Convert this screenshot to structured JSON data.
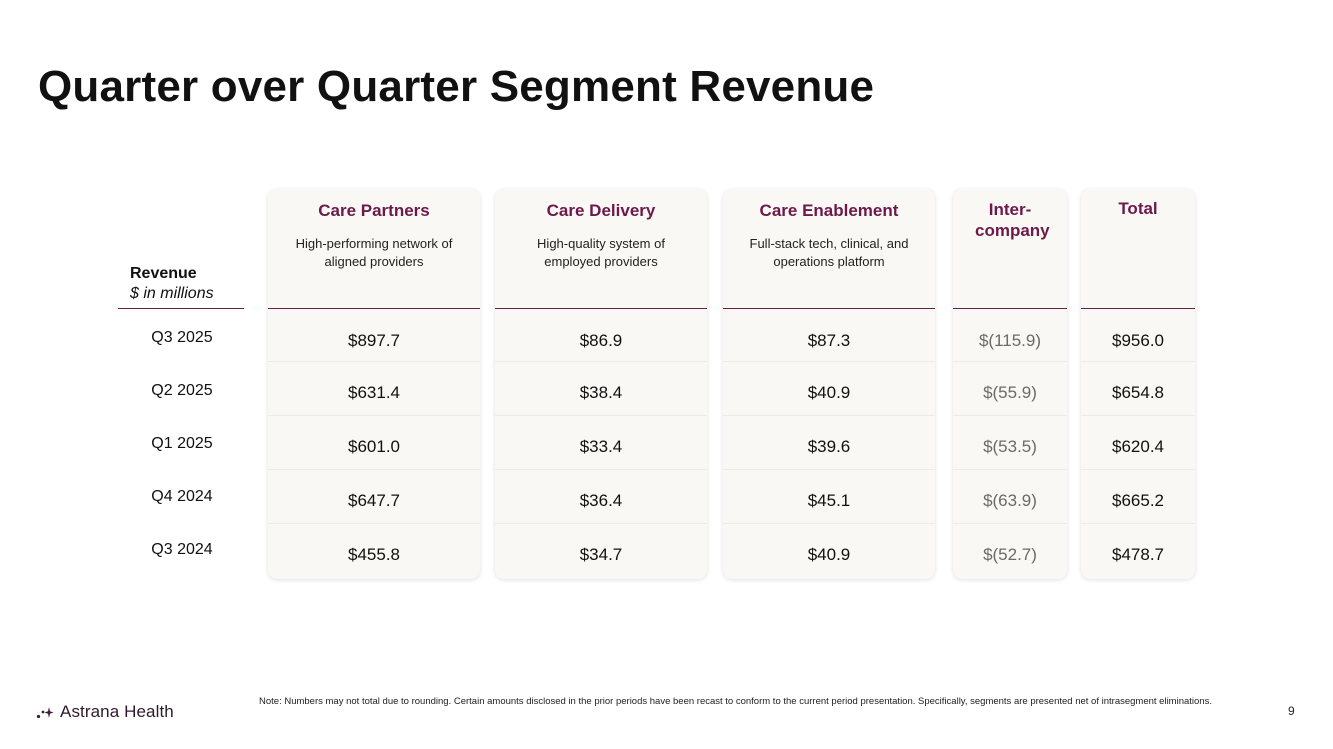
{
  "title": "Quarter over Quarter Segment Revenue",
  "row_header": {
    "label": "Revenue",
    "unit": "$ in millions"
  },
  "periods": [
    "Q3 2025",
    "Q2 2025",
    "Q1 2025",
    "Q4 2024",
    "Q3 2024"
  ],
  "segments": [
    {
      "name": "Care Partners",
      "description": "High-performing network of aligned providers",
      "values": [
        "$897.7",
        "$631.4",
        "$601.0",
        "$647.7",
        "$455.8"
      ]
    },
    {
      "name": "Care Delivery",
      "description": "High-quality system of employed providers",
      "values": [
        "$86.9",
        "$38.4",
        "$33.4",
        "$36.4",
        "$34.7"
      ]
    },
    {
      "name": "Care Enablement",
      "description": "Full-stack tech, clinical, and operations platform",
      "values": [
        "$87.3",
        "$40.9",
        "$39.6",
        "$45.1",
        "$40.9"
      ]
    },
    {
      "name": "Inter-company",
      "description": "",
      "values": [
        "$(115.9)",
        "$(55.9)",
        "$(53.5)",
        "$(63.9)",
        "$(52.7)"
      ]
    },
    {
      "name": "Total",
      "description": "",
      "values": [
        "$956.0",
        "$654.8",
        "$620.4",
        "$665.2",
        "$478.7"
      ]
    }
  ],
  "footer": {
    "brand": "Astrana Health",
    "note": "Note: Numbers may not total due to rounding. Certain amounts disclosed in the prior periods have been recast to conform to the current period presentation. Specifically, segments are presented net of intrasegment eliminations.",
    "page_number": "9"
  },
  "colors": {
    "accent": "#6b1a4a",
    "card_bg": "#faf8f4",
    "muted_value": "#6a6a6a"
  }
}
